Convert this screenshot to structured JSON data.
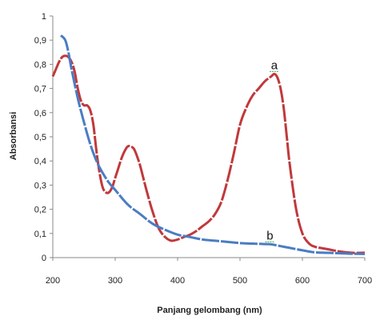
{
  "chart_data": {
    "type": "line",
    "xlabel": "Panjang gelombang (nm)",
    "ylabel": "Absorbansi",
    "xlim": [
      200,
      700
    ],
    "ylim": [
      0,
      1
    ],
    "x_ticks": [
      "200",
      "300",
      "400",
      "500",
      "600",
      "700"
    ],
    "y_ticks": [
      "0",
      "0,1",
      "0,2",
      "0,3",
      "0,4",
      "0,5",
      "0,6",
      "0,7",
      "0,8",
      "0,9",
      "1"
    ],
    "x_tick_values": [
      200,
      300,
      400,
      500,
      600,
      700
    ],
    "y_tick_values": [
      0,
      0.1,
      0.2,
      0.3,
      0.4,
      0.5,
      0.6,
      0.7,
      0.8,
      0.9,
      1.0
    ],
    "grid": false,
    "series": [
      {
        "name": "a",
        "color": "#c0393b",
        "dash": "dashed",
        "x": [
          200,
          205,
          210,
          215,
          220,
          225,
          230,
          235,
          240,
          245,
          250,
          255,
          260,
          265,
          270,
          275,
          280,
          285,
          290,
          295,
          300,
          305,
          310,
          315,
          320,
          325,
          330,
          335,
          340,
          345,
          350,
          360,
          370,
          380,
          390,
          400,
          410,
          420,
          430,
          440,
          450,
          460,
          470,
          480,
          490,
          500,
          510,
          520,
          530,
          540,
          550,
          555,
          560,
          565,
          570,
          575,
          580,
          590,
          600,
          610,
          620,
          640,
          660,
          680,
          700
        ],
        "y": [
          0.75,
          0.78,
          0.81,
          0.83,
          0.835,
          0.83,
          0.81,
          0.77,
          0.7,
          0.65,
          0.63,
          0.63,
          0.61,
          0.55,
          0.44,
          0.35,
          0.29,
          0.27,
          0.27,
          0.29,
          0.33,
          0.37,
          0.41,
          0.44,
          0.46,
          0.46,
          0.45,
          0.42,
          0.38,
          0.33,
          0.28,
          0.19,
          0.12,
          0.085,
          0.07,
          0.075,
          0.085,
          0.095,
          0.11,
          0.13,
          0.15,
          0.18,
          0.23,
          0.32,
          0.43,
          0.55,
          0.62,
          0.67,
          0.7,
          0.73,
          0.75,
          0.76,
          0.745,
          0.7,
          0.62,
          0.5,
          0.38,
          0.2,
          0.1,
          0.06,
          0.045,
          0.035,
          0.025,
          0.02,
          0.02
        ]
      },
      {
        "name": "b",
        "color": "#4a7cc4",
        "dash": "dashed",
        "x": [
          213,
          220,
          225,
          230,
          240,
          250,
          260,
          270,
          280,
          290,
          300,
          320,
          340,
          360,
          380,
          400,
          420,
          440,
          460,
          480,
          500,
          520,
          540,
          550,
          560,
          580,
          600,
          620,
          640,
          660,
          680,
          700
        ],
        "y": [
          0.92,
          0.9,
          0.85,
          0.78,
          0.66,
          0.56,
          0.47,
          0.4,
          0.35,
          0.31,
          0.28,
          0.22,
          0.18,
          0.14,
          0.115,
          0.095,
          0.085,
          0.075,
          0.07,
          0.065,
          0.06,
          0.058,
          0.056,
          0.055,
          0.05,
          0.04,
          0.03,
          0.022,
          0.02,
          0.018,
          0.016,
          0.015
        ]
      }
    ],
    "annotations": [
      {
        "text": "a",
        "x": 555,
        "y": 0.78
      },
      {
        "text": "b",
        "x": 548,
        "y": 0.075
      }
    ]
  }
}
